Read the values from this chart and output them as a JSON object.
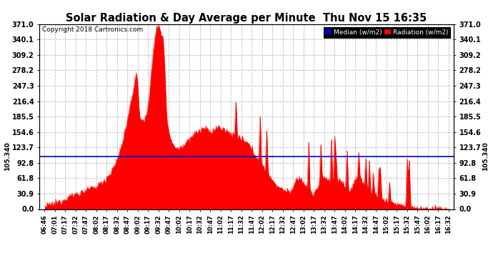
{
  "title": "Solar Radiation & Day Average per Minute  Thu Nov 15 16:35",
  "copyright": "Copyright 2018 Cartronics.com",
  "median_value": 105.34,
  "y_max": 371.0,
  "y_min": 0.0,
  "yticks": [
    0.0,
    30.9,
    61.8,
    92.8,
    123.7,
    154.6,
    185.5,
    216.4,
    247.3,
    278.2,
    309.2,
    340.1,
    371.0
  ],
  "bg_color": "#ffffff",
  "fill_color": "#ff0000",
  "median_line_color": "#0000cc",
  "grid_color": "#bbbbbb",
  "title_color": "#000000",
  "legend_median_bg": "#0000cc",
  "legend_radiation_bg": "#ff0000",
  "xtick_labels": [
    "06:46",
    "07:01",
    "07:17",
    "07:32",
    "07:47",
    "08:02",
    "08:17",
    "08:32",
    "08:47",
    "09:02",
    "09:17",
    "09:32",
    "09:47",
    "10:02",
    "10:17",
    "10:32",
    "10:47",
    "11:02",
    "11:17",
    "11:32",
    "11:47",
    "12:02",
    "12:17",
    "12:32",
    "12:47",
    "13:02",
    "13:17",
    "13:32",
    "13:47",
    "14:02",
    "14:17",
    "14:32",
    "14:47",
    "15:02",
    "15:17",
    "15:32",
    "15:47",
    "16:02",
    "16:17",
    "16:32"
  ],
  "radiation_envelope": [
    5,
    8,
    10,
    12,
    15,
    18,
    22,
    25,
    28,
    30,
    32,
    35,
    38,
    40,
    42,
    45,
    50,
    55,
    62,
    70,
    80,
    95,
    115,
    140,
    170,
    200,
    240,
    280,
    185,
    175,
    190,
    250,
    320,
    371,
    360,
    340,
    175,
    140,
    130,
    120,
    125,
    130,
    140,
    145,
    150,
    155,
    160,
    162,
    158,
    155,
    160,
    165,
    162,
    158,
    155,
    152,
    148,
    145,
    140,
    135,
    130,
    120,
    110,
    100,
    90,
    80,
    70,
    60,
    50,
    45,
    40,
    38,
    35,
    42,
    55,
    65,
    55,
    45,
    35,
    28,
    40,
    55,
    65,
    60,
    50,
    45,
    55,
    60,
    50,
    40,
    35,
    55,
    65,
    60,
    50,
    40,
    35,
    30,
    25,
    20,
    18,
    16,
    14,
    12,
    10,
    8,
    6,
    5,
    4,
    3,
    2,
    1,
    0,
    0,
    0,
    0,
    0,
    0,
    0,
    0
  ]
}
